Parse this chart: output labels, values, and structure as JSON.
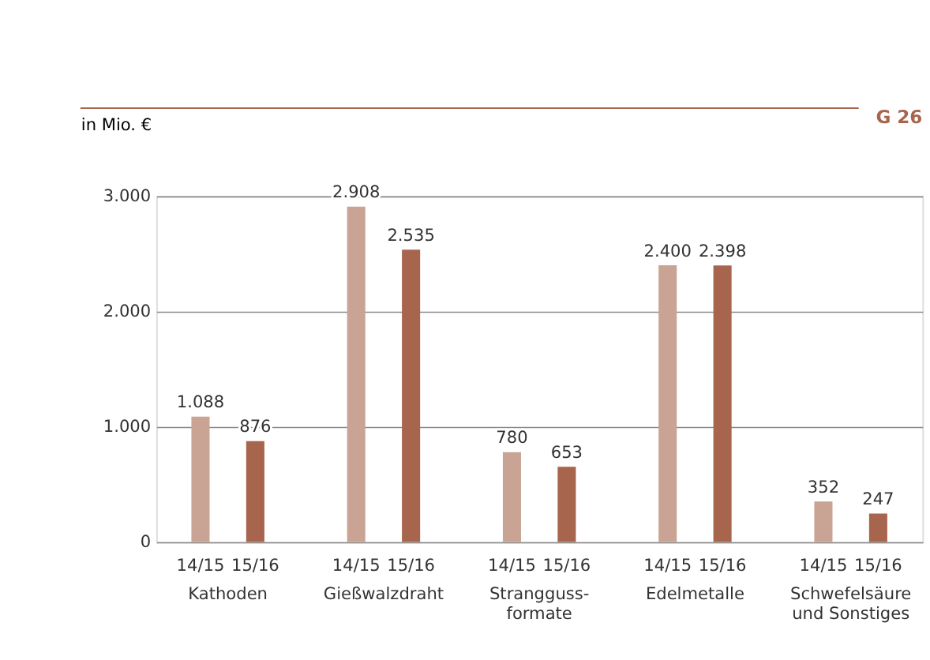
{
  "chart_data": {
    "type": "bar",
    "ylabel": "in Mio. €",
    "annotations": [
      "G 26"
    ],
    "categories": [
      "Kathoden",
      "Gießwalzdraht",
      "Strangguss-\nformate",
      "Edelmetalle",
      "Schwefelsäure\nund Sonstiges"
    ],
    "series": [
      {
        "name": "14/15",
        "color": "#c9a393",
        "values": [
          1088,
          2908,
          780,
          2400,
          352
        ],
        "value_labels": [
          "1.088",
          "2.908",
          "780",
          "2.400",
          "352"
        ]
      },
      {
        "name": "15/16",
        "color": "#a8654d",
        "values": [
          876,
          2535,
          653,
          2398,
          247
        ],
        "value_labels": [
          "876",
          "2.535",
          "653",
          "2.398",
          "247"
        ]
      }
    ],
    "ylim": [
      0,
      3000
    ],
    "yticks": [
      0,
      {
        "value": 1000,
        "label": "1.000"
      },
      {
        "value": 2000,
        "label": "2.000"
      },
      {
        "value": 3000,
        "label": "3.000"
      }
    ],
    "grid": "y"
  }
}
